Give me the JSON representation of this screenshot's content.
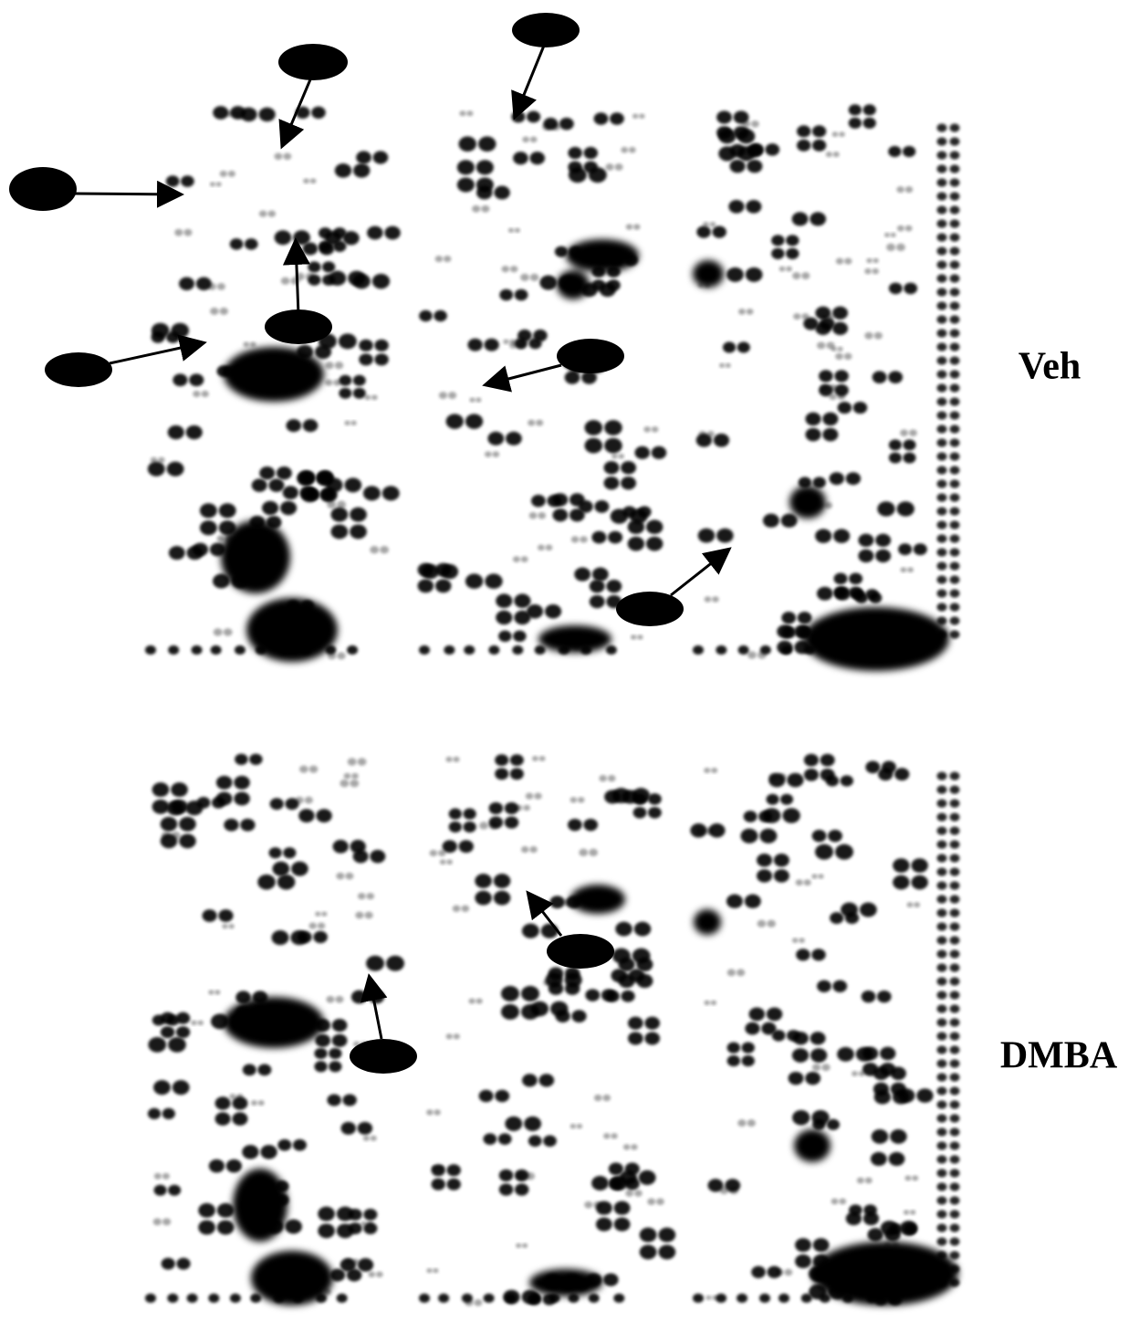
{
  "labels": {
    "top": "Veh",
    "bottom": "DMBA"
  }
}
